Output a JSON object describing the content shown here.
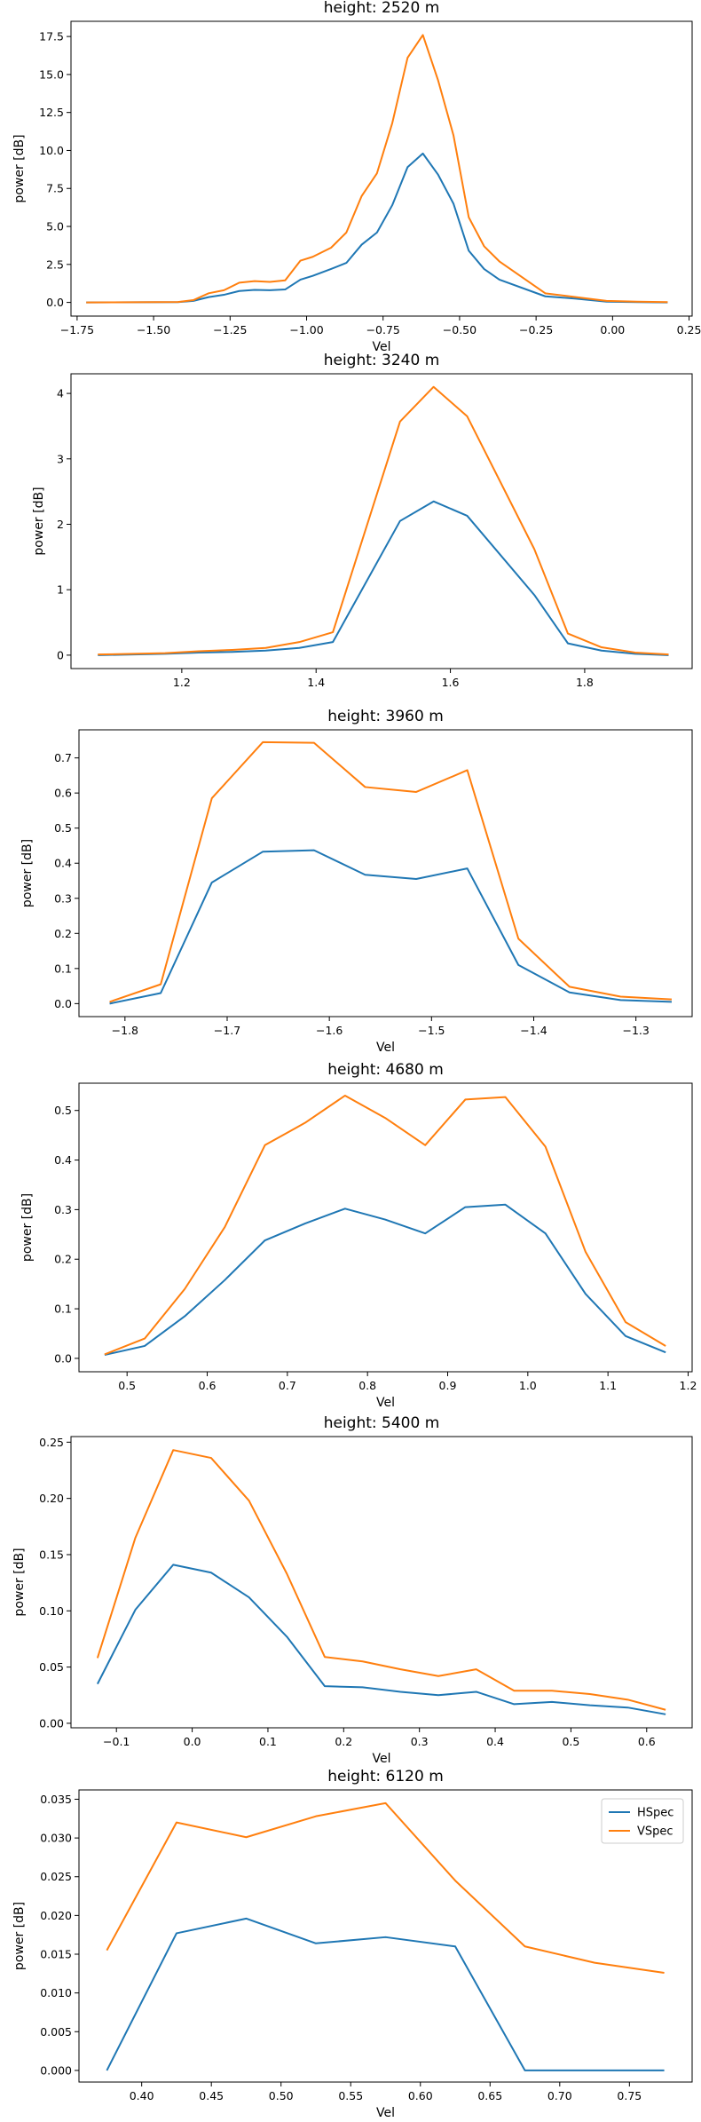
{
  "colors": {
    "HSpec": "#1f77b4",
    "VSpec": "#ff7f0e"
  },
  "legend": {
    "items": [
      "HSpec",
      "VSpec"
    ],
    "location": "upper-right",
    "shown_on_panel": 6
  },
  "chart_data": [
    {
      "type": "line",
      "title": "height: 2520 m",
      "xlabel": "Vel",
      "ylabel": "power [dB]",
      "xlim": [
        -1.77,
        0.26
      ],
      "ylim": [
        -0.9,
        18.5
      ],
      "xticks": [
        -1.75,
        -1.5,
        -1.25,
        -1.0,
        -0.75,
        -0.5,
        -0.25,
        0.0,
        0.25
      ],
      "xtick_labels": [
        "−1.75",
        "−1.50",
        "−1.25",
        "−1.00",
        "−0.75",
        "−0.50",
        "−0.25",
        "0.00",
        "0.25"
      ],
      "yticks": [
        0,
        2.5,
        5,
        7.5,
        10,
        12.5,
        15,
        17.5
      ],
      "ytick_labels": [
        "0.0",
        "2.5",
        "5.0",
        "7.5",
        "10.0",
        "12.5",
        "15.0",
        "17.5"
      ],
      "series": [
        {
          "name": "HSpec",
          "x": [
            -1.72,
            -1.42,
            -1.37,
            -1.32,
            -1.27,
            -1.22,
            -1.17,
            -1.12,
            -1.07,
            -1.02,
            -0.98,
            -0.92,
            -0.87,
            -0.82,
            -0.77,
            -0.72,
            -0.67,
            -0.62,
            -0.57,
            -0.52,
            -0.47,
            -0.42,
            -0.37,
            -0.22,
            -0.12,
            -0.02,
            0.08,
            0.18
          ],
          "y": [
            0.0,
            0.02,
            0.1,
            0.35,
            0.5,
            0.75,
            0.82,
            0.8,
            0.85,
            1.5,
            1.75,
            2.2,
            2.6,
            3.8,
            4.6,
            6.4,
            8.9,
            9.8,
            8.4,
            6.5,
            3.4,
            2.2,
            1.5,
            0.4,
            0.25,
            0.05,
            0.02,
            0.0
          ]
        },
        {
          "name": "VSpec",
          "x": [
            -1.72,
            -1.42,
            -1.37,
            -1.32,
            -1.27,
            -1.22,
            -1.17,
            -1.12,
            -1.07,
            -1.02,
            -0.98,
            -0.92,
            -0.87,
            -0.82,
            -0.77,
            -0.72,
            -0.67,
            -0.62,
            -0.57,
            -0.52,
            -0.47,
            -0.42,
            -0.37,
            -0.22,
            -0.12,
            -0.02,
            0.08,
            0.18
          ],
          "y": [
            0.0,
            0.03,
            0.15,
            0.6,
            0.8,
            1.3,
            1.4,
            1.35,
            1.45,
            2.75,
            3.0,
            3.6,
            4.6,
            7.0,
            8.5,
            11.8,
            16.1,
            17.6,
            14.6,
            11.0,
            5.6,
            3.7,
            2.7,
            0.6,
            0.35,
            0.1,
            0.05,
            0.02
          ]
        }
      ]
    },
    {
      "type": "line",
      "title": "height: 3240 m",
      "xlabel": "",
      "ylabel": "power [dB]",
      "xlim": [
        1.035,
        1.96
      ],
      "ylim": [
        -0.205,
        4.3
      ],
      "xticks": [
        1.2,
        1.4,
        1.6,
        1.8
      ],
      "xtick_labels": [
        "1.2",
        "1.4",
        "1.6",
        "1.8"
      ],
      "yticks": [
        0,
        1,
        2,
        3,
        4
      ],
      "ytick_labels": [
        "0",
        "1",
        "2",
        "3",
        "4"
      ],
      "series": [
        {
          "name": "HSpec",
          "x": [
            1.075,
            1.175,
            1.225,
            1.275,
            1.325,
            1.375,
            1.425,
            1.525,
            1.575,
            1.625,
            1.725,
            1.775,
            1.825,
            1.875,
            1.925
          ],
          "y": [
            0.0,
            0.02,
            0.04,
            0.05,
            0.07,
            0.11,
            0.2,
            2.05,
            2.35,
            2.13,
            0.92,
            0.18,
            0.07,
            0.02,
            0.0
          ]
        },
        {
          "name": "VSpec",
          "x": [
            1.075,
            1.175,
            1.225,
            1.275,
            1.325,
            1.375,
            1.425,
            1.525,
            1.575,
            1.625,
            1.725,
            1.775,
            1.825,
            1.875,
            1.925
          ],
          "y": [
            0.01,
            0.03,
            0.06,
            0.08,
            0.11,
            0.2,
            0.35,
            3.57,
            4.1,
            3.65,
            1.62,
            0.33,
            0.12,
            0.04,
            0.01
          ]
        }
      ]
    },
    {
      "type": "line",
      "title": "height: 3960 m",
      "xlabel": "Vel",
      "ylabel": "power [dB]",
      "xlim": [
        -1.845,
        -1.245
      ],
      "ylim": [
        -0.037,
        0.78
      ],
      "xticks": [
        -1.8,
        -1.7,
        -1.6,
        -1.5,
        -1.4,
        -1.3
      ],
      "xtick_labels": [
        "−1.8",
        "−1.7",
        "−1.6",
        "−1.5",
        "−1.4",
        "−1.3"
      ],
      "yticks": [
        0,
        0.1,
        0.2,
        0.3,
        0.4,
        0.5,
        0.6,
        0.7
      ],
      "ytick_labels": [
        "0.0",
        "0.1",
        "0.2",
        "0.3",
        "0.4",
        "0.5",
        "0.6",
        "0.7"
      ],
      "series": [
        {
          "name": "HSpec",
          "x": [
            -1.815,
            -1.765,
            -1.715,
            -1.665,
            -1.615,
            -1.565,
            -1.515,
            -1.465,
            -1.415,
            -1.365,
            -1.315,
            -1.265
          ],
          "y": [
            0.0,
            0.03,
            0.345,
            0.433,
            0.437,
            0.367,
            0.355,
            0.385,
            0.11,
            0.032,
            0.01,
            0.005
          ]
        },
        {
          "name": "VSpec",
          "x": [
            -1.815,
            -1.765,
            -1.715,
            -1.665,
            -1.615,
            -1.565,
            -1.515,
            -1.465,
            -1.415,
            -1.365,
            -1.315,
            -1.265
          ],
          "y": [
            0.005,
            0.055,
            0.585,
            0.745,
            0.743,
            0.617,
            0.603,
            0.665,
            0.185,
            0.048,
            0.02,
            0.012
          ]
        }
      ]
    },
    {
      "type": "line",
      "title": "height: 4680 m",
      "xlabel": "Vel",
      "ylabel": "power [dB]",
      "xlim": [
        0.44,
        1.205
      ],
      "ylim": [
        -0.027,
        0.555
      ],
      "xticks": [
        0.5,
        0.6,
        0.7,
        0.8,
        0.9,
        1.0,
        1.1,
        1.2
      ],
      "xtick_labels": [
        "0.5",
        "0.6",
        "0.7",
        "0.8",
        "0.9",
        "1.0",
        "1.1",
        "1.2"
      ],
      "yticks": [
        0,
        0.1,
        0.2,
        0.3,
        0.4,
        0.5
      ],
      "ytick_labels": [
        "0.0",
        "0.1",
        "0.2",
        "0.3",
        "0.4",
        "0.5"
      ],
      "series": [
        {
          "name": "HSpec",
          "x": [
            0.472,
            0.522,
            0.572,
            0.622,
            0.672,
            0.722,
            0.772,
            0.822,
            0.872,
            0.922,
            0.972,
            1.022,
            1.072,
            1.122,
            1.172
          ],
          "y": [
            0.007,
            0.025,
            0.085,
            0.158,
            0.238,
            0.272,
            0.302,
            0.28,
            0.252,
            0.305,
            0.31,
            0.252,
            0.13,
            0.045,
            0.012
          ]
        },
        {
          "name": "VSpec",
          "x": [
            0.472,
            0.522,
            0.572,
            0.622,
            0.672,
            0.722,
            0.772,
            0.822,
            0.872,
            0.922,
            0.972,
            1.022,
            1.072,
            1.122,
            1.172
          ],
          "y": [
            0.008,
            0.04,
            0.14,
            0.265,
            0.43,
            0.475,
            0.53,
            0.485,
            0.43,
            0.522,
            0.527,
            0.427,
            0.215,
            0.073,
            0.025
          ]
        }
      ]
    },
    {
      "type": "line",
      "title": "height: 5400 m",
      "xlabel": "Vel",
      "ylabel": "power [dB]",
      "xlim": [
        -0.16,
        0.66
      ],
      "ylim": [
        -0.004,
        0.255
      ],
      "xticks": [
        -0.1,
        0.0,
        0.1,
        0.2,
        0.3,
        0.4,
        0.5,
        0.6
      ],
      "xtick_labels": [
        "−0.1",
        "0.0",
        "0.1",
        "0.2",
        "0.3",
        "0.4",
        "0.5",
        "0.6"
      ],
      "yticks": [
        0,
        0.05,
        0.1,
        0.15,
        0.2,
        0.25
      ],
      "ytick_labels": [
        "0.00",
        "0.05",
        "0.10",
        "0.15",
        "0.20",
        "0.25"
      ],
      "series": [
        {
          "name": "HSpec",
          "x": [
            -0.125,
            -0.075,
            -0.025,
            0.025,
            0.075,
            0.125,
            0.175,
            0.225,
            0.275,
            0.325,
            0.375,
            0.425,
            0.475,
            0.525,
            0.575,
            0.625
          ],
          "y": [
            0.035,
            0.101,
            0.141,
            0.134,
            0.112,
            0.077,
            0.033,
            0.032,
            0.028,
            0.025,
            0.028,
            0.017,
            0.019,
            0.016,
            0.014,
            0.008
          ]
        },
        {
          "name": "VSpec",
          "x": [
            -0.125,
            -0.075,
            -0.025,
            0.025,
            0.075,
            0.125,
            0.175,
            0.225,
            0.275,
            0.325,
            0.375,
            0.425,
            0.475,
            0.525,
            0.575,
            0.625
          ],
          "y": [
            0.058,
            0.165,
            0.243,
            0.236,
            0.198,
            0.133,
            0.059,
            0.055,
            0.048,
            0.042,
            0.048,
            0.029,
            0.029,
            0.026,
            0.021,
            0.012
          ]
        }
      ]
    },
    {
      "type": "line",
      "title": "height: 6120 m",
      "xlabel": "Vel",
      "ylabel": "power [dB]",
      "xlim": [
        0.355,
        0.795
      ],
      "ylim": [
        -0.0015,
        0.0362
      ],
      "xticks": [
        0.4,
        0.45,
        0.5,
        0.55,
        0.6,
        0.65,
        0.7,
        0.75
      ],
      "xtick_labels": [
        "0.40",
        "0.45",
        "0.50",
        "0.55",
        "0.60",
        "0.65",
        "0.70",
        "0.75"
      ],
      "yticks": [
        0,
        0.005,
        0.01,
        0.015,
        0.02,
        0.025,
        0.03,
        0.035
      ],
      "ytick_labels": [
        "0.000",
        "0.005",
        "0.010",
        "0.015",
        "0.020",
        "0.025",
        "0.030",
        "0.035"
      ],
      "series": [
        {
          "name": "HSpec",
          "x": [
            0.375,
            0.425,
            0.475,
            0.525,
            0.575,
            0.625,
            0.675,
            0.725,
            0.775
          ],
          "y": [
            0.0,
            0.0177,
            0.0196,
            0.0164,
            0.0172,
            0.016,
            0.0,
            0.0,
            0.0
          ]
        },
        {
          "name": "VSpec",
          "x": [
            0.375,
            0.425,
            0.475,
            0.525,
            0.575,
            0.625,
            0.675,
            0.725,
            0.775
          ],
          "y": [
            0.0155,
            0.032,
            0.0301,
            0.0328,
            0.0345,
            0.0245,
            0.016,
            0.0139,
            0.0126
          ]
        }
      ]
    }
  ]
}
